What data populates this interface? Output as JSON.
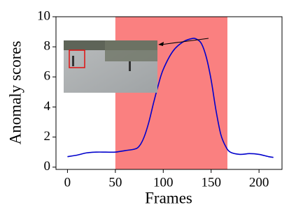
{
  "chart_data": {
    "type": "line",
    "x_label": "Frames",
    "y_label": "Anomaly scores",
    "x": [
      0,
      10,
      20,
      30,
      40,
      50,
      60,
      70,
      75,
      80,
      85,
      90,
      95,
      100,
      110,
      120,
      130,
      135,
      140,
      145,
      150,
      155,
      160,
      165,
      170,
      180,
      190,
      200,
      210,
      215
    ],
    "values": [
      0.7,
      0.8,
      0.95,
      1.0,
      1.0,
      1.0,
      1.1,
      1.2,
      1.4,
      2.0,
      3.0,
      4.3,
      5.5,
      6.5,
      7.7,
      8.3,
      8.55,
      8.5,
      8.2,
      7.3,
      5.8,
      3.8,
      2.2,
      1.4,
      1.0,
      0.85,
      0.9,
      0.85,
      0.7,
      0.65
    ],
    "color": "#0000cc",
    "shaded_range": [
      50,
      167
    ],
    "shaded_color": "#fa8080",
    "xlim": [
      -12,
      224
    ],
    "xticks": [
      0,
      50,
      100,
      150,
      200
    ],
    "ylim": [
      -0.15,
      10
    ],
    "yticks": [
      0,
      2,
      4,
      6,
      8,
      10
    ]
  }
}
